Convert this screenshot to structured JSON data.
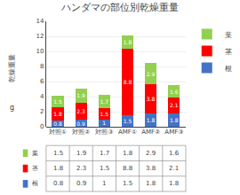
{
  "chart_data": {
    "type": "bar",
    "title": "ハンダマの部位別乾燥重量",
    "categories": [
      "対照①",
      "対照②",
      "対照③",
      "AMF①",
      "AMF②",
      "AMF③"
    ],
    "series": [
      {
        "name": "根",
        "color": "#4472c4",
        "values": [
          0.8,
          0.9,
          1.0,
          1.5,
          1.8,
          1.8
        ]
      },
      {
        "name": "茎",
        "color": "#ff0000",
        "values": [
          1.8,
          2.3,
          1.5,
          8.8,
          3.8,
          2.1
        ]
      },
      {
        "name": "葉",
        "color": "#92d050",
        "values": [
          1.5,
          1.9,
          1.7,
          1.8,
          2.9,
          1.6
        ]
      }
    ],
    "stacked": true,
    "ylabel": "乾燥重量",
    "annotations": [
      {
        "text": "g"
      }
    ],
    "ylim": [
      0,
      14
    ],
    "yticks": [
      0,
      2,
      4,
      6,
      8,
      10,
      12,
      14
    ],
    "grid": true,
    "data_labels": true,
    "legend": "upper right"
  }
}
